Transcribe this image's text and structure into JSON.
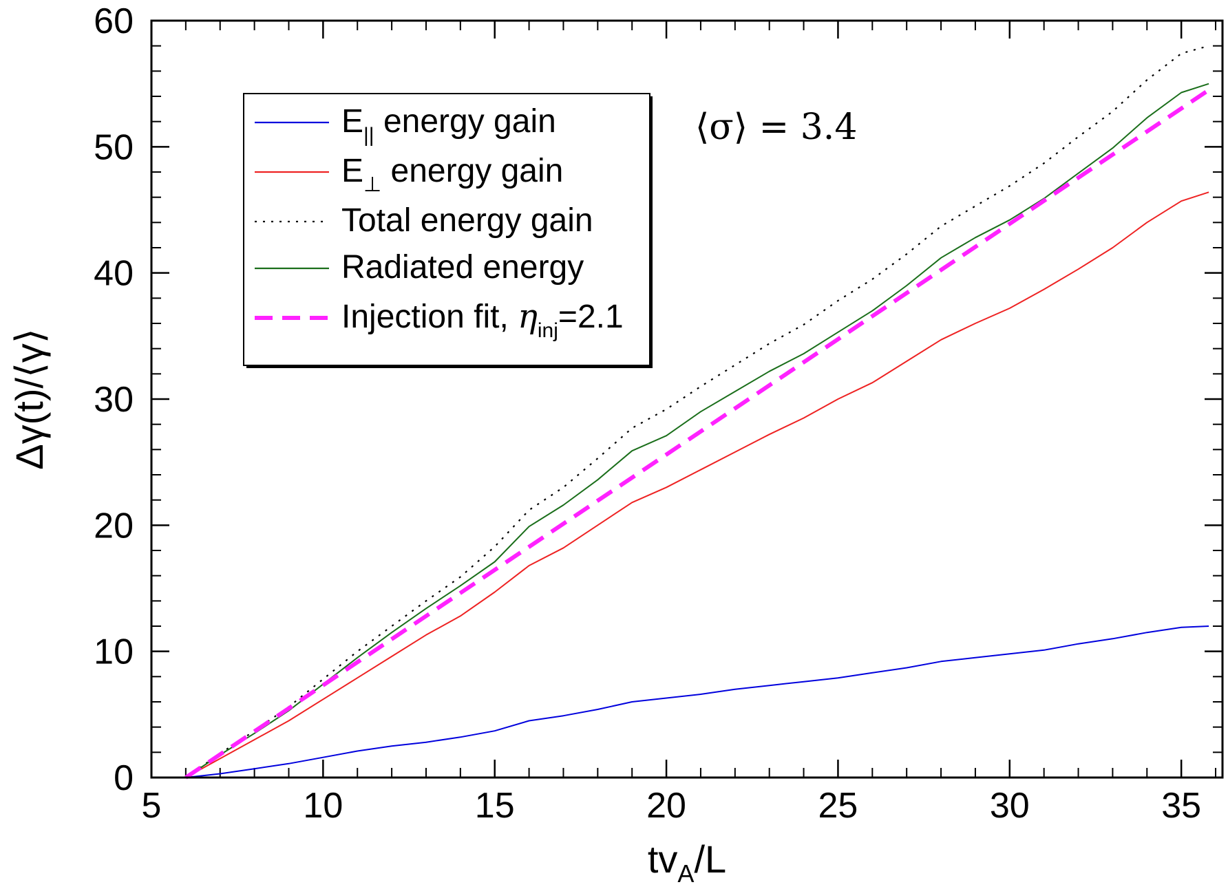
{
  "chart_data": {
    "type": "line",
    "xlabel": "tv",
    "xlabel_sub": "A",
    "xlabel_suffix": "/L",
    "ylabel": "Δγ(t)/⟨γ⟩",
    "xlim": [
      5,
      36.2
    ],
    "ylim": [
      0,
      60
    ],
    "x_ticks": [
      5,
      10,
      15,
      20,
      25,
      30,
      35
    ],
    "y_ticks": [
      0,
      10,
      20,
      30,
      40,
      50,
      60
    ],
    "x_minor_step": 1,
    "y_minor_step": 2,
    "annotation": "⟨σ⟩ = 3.4",
    "legend_position": "upper-left",
    "series": [
      {
        "name": "E|| energy gain",
        "legend_main": "E",
        "legend_sub": "||",
        "legend_rest": " energy gain",
        "color": "#0000dd",
        "style": "solid",
        "x": [
          6.0,
          7,
          8,
          9,
          10,
          11,
          12,
          13,
          14,
          15,
          16,
          17,
          18,
          19,
          20,
          21,
          22,
          23,
          24,
          25,
          26,
          27,
          28,
          29,
          30,
          31,
          32,
          33,
          34,
          35,
          35.8
        ],
        "y": [
          0,
          0.3,
          0.7,
          1.1,
          1.6,
          2.1,
          2.5,
          2.8,
          3.2,
          3.7,
          4.5,
          4.9,
          5.4,
          6.0,
          6.3,
          6.6,
          7.0,
          7.3,
          7.6,
          7.9,
          8.3,
          8.7,
          9.2,
          9.5,
          9.8,
          10.1,
          10.6,
          11.0,
          11.5,
          11.9,
          12.0
        ]
      },
      {
        "name": "E⊥ energy gain",
        "legend_main": "E",
        "legend_sub": "⊥",
        "legend_rest": " energy gain",
        "color": "#ee2222",
        "style": "solid",
        "x": [
          6.0,
          7,
          8,
          9,
          10,
          11,
          12,
          13,
          14,
          15,
          16,
          17,
          18,
          19,
          20,
          21,
          22,
          23,
          24,
          25,
          26,
          27,
          28,
          29,
          30,
          31,
          32,
          33,
          34,
          35,
          35.8
        ],
        "y": [
          0,
          1.5,
          3.0,
          4.5,
          6.2,
          7.9,
          9.6,
          11.3,
          12.8,
          14.7,
          16.8,
          18.2,
          20.0,
          21.8,
          23.0,
          24.4,
          25.8,
          27.2,
          28.5,
          30.0,
          31.3,
          33.0,
          34.7,
          36.0,
          37.2,
          38.7,
          40.3,
          42.0,
          44.0,
          45.7,
          46.4
        ]
      },
      {
        "name": "Total energy gain",
        "legend_main": "Total energy gain",
        "legend_sub": "",
        "legend_rest": "",
        "color": "#000000",
        "style": "dotted",
        "x": [
          6.0,
          7,
          8,
          9,
          10,
          11,
          12,
          13,
          14,
          15,
          16,
          17,
          18,
          19,
          20,
          21,
          22,
          23,
          24,
          25,
          26,
          27,
          28,
          29,
          30,
          31,
          32,
          33,
          34,
          35,
          35.8
        ],
        "y": [
          0,
          1.9,
          3.7,
          5.6,
          7.8,
          10.0,
          12.0,
          14.0,
          15.9,
          18.3,
          21.2,
          23.0,
          25.3,
          27.7,
          29.2,
          31.0,
          32.7,
          34.4,
          35.9,
          37.8,
          39.5,
          41.5,
          43.7,
          45.3,
          46.9,
          48.7,
          50.8,
          52.8,
          55.3,
          57.4,
          58.0
        ]
      },
      {
        "name": "Radiated energy",
        "legend_main": "Radiated energy",
        "legend_sub": "",
        "legend_rest": "",
        "color": "#1a6e1a",
        "style": "solid",
        "x": [
          6.0,
          7,
          8,
          9,
          10,
          11,
          12,
          13,
          14,
          15,
          16,
          17,
          18,
          19,
          20,
          21,
          22,
          23,
          24,
          25,
          26,
          27,
          28,
          29,
          30,
          31,
          32,
          33,
          34,
          35,
          35.8
        ],
        "y": [
          0,
          1.8,
          3.5,
          5.3,
          7.4,
          9.5,
          11.5,
          13.4,
          15.2,
          17.1,
          19.9,
          21.6,
          23.6,
          25.9,
          27.1,
          29.0,
          30.6,
          32.2,
          33.6,
          35.3,
          37.0,
          39.0,
          41.2,
          42.8,
          44.2,
          45.9,
          47.9,
          49.9,
          52.3,
          54.3,
          55.0
        ]
      },
      {
        "name": "Injection fit, ηinj=2.1",
        "legend_main": "Injection fit, ",
        "legend_sub": "",
        "legend_rest": "",
        "legend_eta": "η",
        "legend_eta_sub": "inj",
        "legend_eta_rest": "=2.1",
        "color": "#ff22ff",
        "style": "dashed",
        "x": [
          6.0,
          35.8
        ],
        "y": [
          0,
          54.5
        ]
      }
    ]
  }
}
